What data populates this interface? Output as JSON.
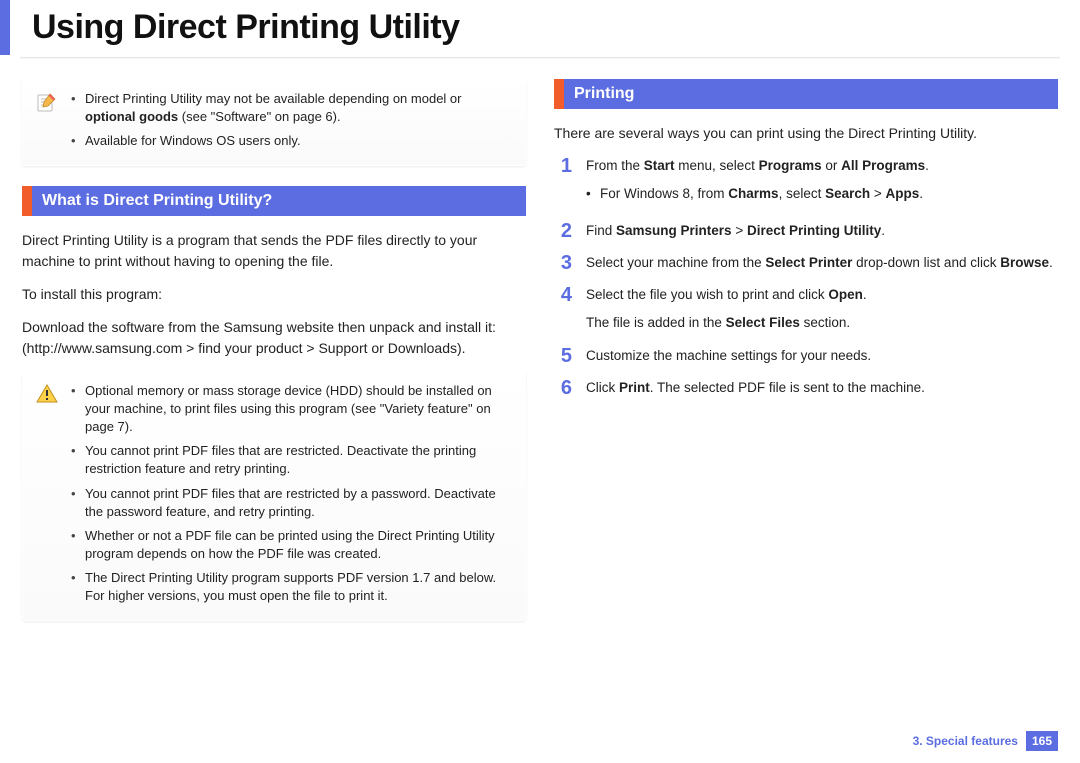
{
  "page_title": "Using Direct Printing Utility",
  "colors": {
    "accent": "#5b6de0",
    "accent_orange": "#f25b2a"
  },
  "left": {
    "note1": {
      "icon": "pencil-note-icon",
      "items_html": [
        "Direct Printing Utility may not be available depending on model or <b>optional goods</b> (see \"Software\" on page 6).",
        "Available for Windows OS users only."
      ]
    },
    "section1_header": "What is Direct Printing Utility?",
    "para1": "Direct Printing Utility is a program that sends the PDF files directly to your machine to print without having to opening the file.",
    "para2": "To install this program:",
    "para3": "Download the software from the Samsung website then unpack and install it: (http://www.samsung.com > find your product > Support or Downloads).",
    "note2": {
      "icon": "warning-icon",
      "items_html": [
        "Optional memory or mass storage device (HDD) should be installed on your machine, to print files using this program (see \"Variety feature\" on page 7).",
        "You cannot print PDF files that are restricted. Deactivate the printing restriction feature and retry printing.",
        "You cannot print PDF files that are restricted by a password. Deactivate the password feature, and retry printing.",
        "Whether or not a PDF file can be printed using the Direct Printing Utility program depends on how the PDF file was created.",
        "The Direct Printing Utility program supports PDF version 1.7 and below. For higher versions, you must open the file to print it."
      ]
    }
  },
  "right": {
    "section_header": "Printing",
    "intro": "There are several ways you can print using the Direct Printing Utility.",
    "steps": [
      {
        "num": "1",
        "body_html": "From the <b>Start</b> menu, select <b>Programs</b> or <b>All Programs</b>.",
        "sub_html": [
          "For Windows 8, from <b>Charms</b>, select <b>Search</b> > <b>Apps</b>."
        ]
      },
      {
        "num": "2",
        "body_html": "Find <b>Samsung Printers</b> > <b>Direct Printing Utility</b>."
      },
      {
        "num": "3",
        "body_html": "Select your machine from the <b>Select Printer</b> drop-down list and click <b>Browse</b>."
      },
      {
        "num": "4",
        "body_html": "Select the file you wish to print and click <b>Open</b>.",
        "follow_html": "The file is added in the <b>Select Files</b> section."
      },
      {
        "num": "5",
        "body_html": "Customize the machine settings for your needs."
      },
      {
        "num": "6",
        "body_html": "Click <b>Print</b>. The selected PDF file is sent to the machine."
      }
    ]
  },
  "footer": {
    "label": "3.  Special features",
    "page": "165"
  }
}
